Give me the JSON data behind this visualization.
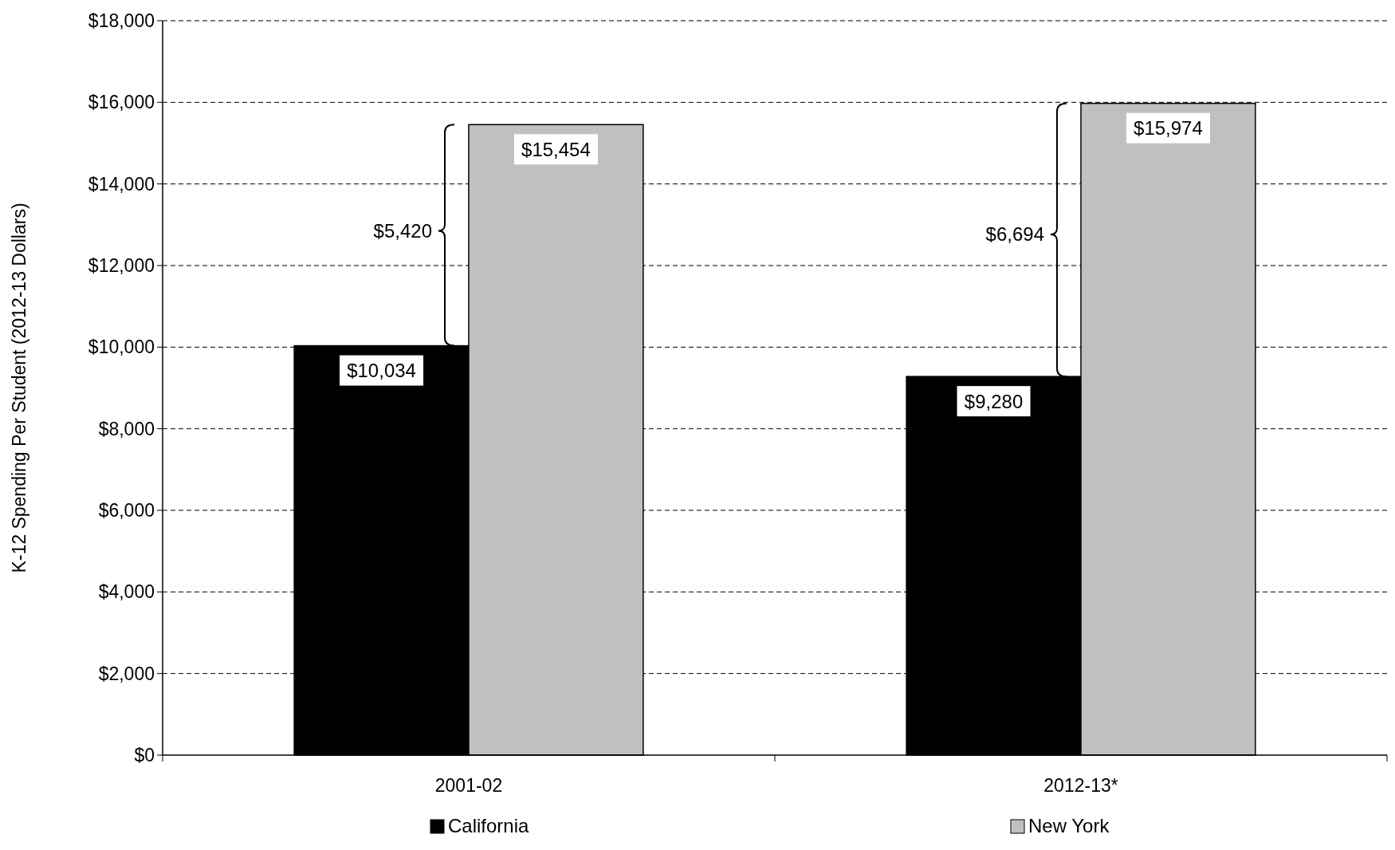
{
  "chart_data": {
    "type": "bar",
    "ylabel": "K-12 Spending Per Student (2012-13 Dollars)",
    "categories": [
      "2001-02",
      "2012-13*"
    ],
    "series": [
      {
        "name": "California",
        "color": "#000000",
        "values": [
          10034,
          9280
        ],
        "value_labels": [
          "$10,034",
          "$9,280"
        ]
      },
      {
        "name": "New York",
        "color": "#c0c0c0",
        "values": [
          15454,
          15974
        ],
        "value_labels": [
          "$15,454",
          "$15,974"
        ]
      }
    ],
    "ylim": [
      0,
      18000
    ],
    "yticks": [
      {
        "value": 0,
        "label": "$0"
      },
      {
        "value": 2000,
        "label": "$2,000"
      },
      {
        "value": 4000,
        "label": "$4,000"
      },
      {
        "value": 6000,
        "label": "$6,000"
      },
      {
        "value": 8000,
        "label": "$8,000"
      },
      {
        "value": 10000,
        "label": "$10,000"
      },
      {
        "value": 12000,
        "label": "$12,000"
      },
      {
        "value": 14000,
        "label": "$14,000"
      },
      {
        "value": 16000,
        "label": "$16,000"
      },
      {
        "value": 18000,
        "label": "$18,000"
      }
    ],
    "annotations": [
      "$5,420",
      "$6,694"
    ],
    "grid": "y",
    "legend": "bottom"
  }
}
